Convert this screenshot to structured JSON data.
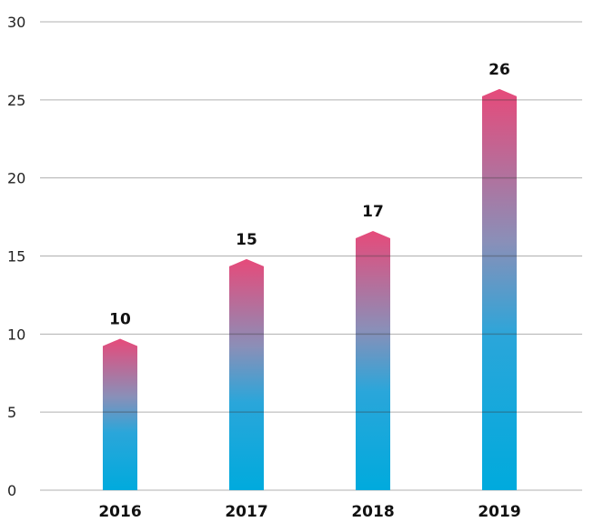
{
  "chart_data": {
    "type": "bar",
    "title": "",
    "xlabel": "",
    "ylabel": "",
    "categories": [
      "2016",
      "2017",
      "2018",
      "2019"
    ],
    "values": [
      9.7,
      14.8,
      16.6,
      25.7
    ],
    "value_labels": [
      "10",
      "15",
      "17",
      "26"
    ],
    "ylim": [
      0,
      30
    ],
    "yticks": [
      "0",
      "5",
      "10",
      "15",
      "20",
      "25",
      "30"
    ],
    "grid": true,
    "legend": "none",
    "colors": {
      "bar_bottom": "#00aadd",
      "bar_top": "#e64a7a",
      "grid": "#b0b0b0"
    }
  }
}
